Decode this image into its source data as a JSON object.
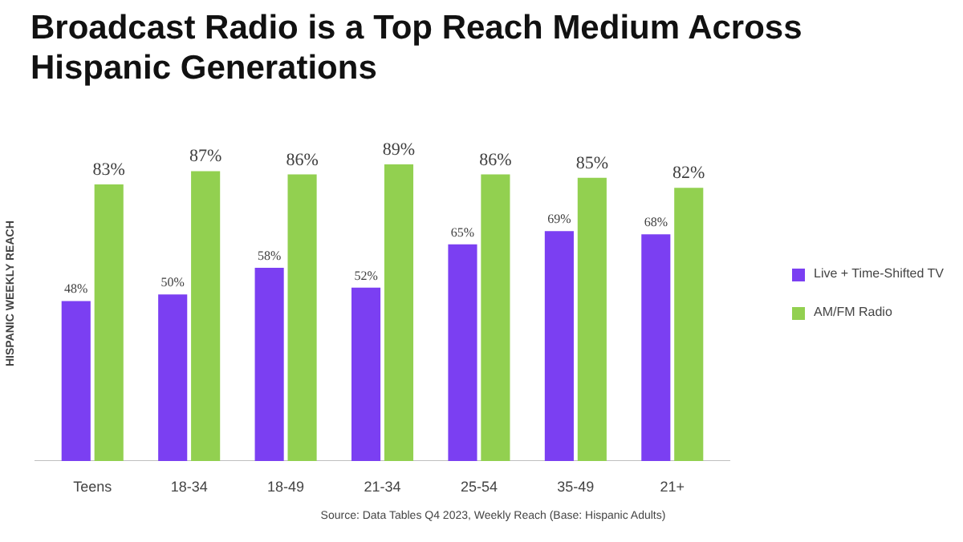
{
  "chart_data": {
    "type": "bar",
    "title": "Broadcast Radio is a Top Reach Medium Across Hispanic Generations",
    "ylabel": "HISPANIC WEEKLY REACH",
    "categories": [
      "Teens",
      "18-34",
      "18-49",
      "21-34",
      "25-54",
      "35-49",
      "21+"
    ],
    "data_labels": true,
    "legend": "right",
    "grid": false,
    "series": [
      {
        "name": "Live + Time-Shifted TV",
        "color": "#7b3ff2",
        "values": [
          48,
          50,
          58,
          52,
          65,
          69,
          68
        ],
        "value_labels": [
          "48%",
          "50%",
          "58%",
          "52%",
          "65%",
          "69%",
          "68%"
        ]
      },
      {
        "name": "AM/FM Radio",
        "color": "#92d050",
        "values": [
          83,
          87,
          86,
          89,
          86,
          85,
          82
        ],
        "value_labels": [
          "83%",
          "87%",
          "86%",
          "89%",
          "86%",
          "85%",
          "82%"
        ]
      }
    ],
    "annotations": [
      "Source: Data Tables Q4 2023, Weekly Reach (Base: Hispanic Adults)"
    ]
  }
}
